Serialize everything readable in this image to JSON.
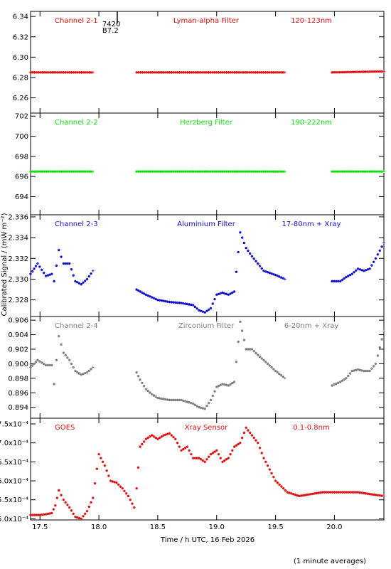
{
  "chart_data": {
    "type": "scatter",
    "x_axis": {
      "label": "Time / h UTC, 16 Feb 2026",
      "range": [
        17.42,
        20.42
      ],
      "ticks": [
        "17.5",
        "18.0",
        "18.5",
        "19.0",
        "19.5",
        "20.0"
      ],
      "tick_values": [
        17.5,
        18.0,
        18.5,
        19.0,
        19.5,
        20.0
      ]
    },
    "y_axis_label": "Calibrated Signal / (mW m⁻²)",
    "footnote": "(1 minute averages)",
    "annotation": {
      "lines": [
        "7420",
        "B7.2"
      ],
      "x": 18.15
    },
    "colors": {
      "red": "#dd1111",
      "green": "#11dd11",
      "blue": "#1111cc",
      "gray": "#808080"
    },
    "panels": [
      {
        "name": "Channel 2-1",
        "filter": "Lyman-alpha Filter",
        "band": "120-123nm",
        "color": "red",
        "ylim": [
          6.245,
          6.345
        ],
        "yticks": [
          "6.26",
          "6.28",
          "6.30",
          "6.32",
          "6.34"
        ],
        "ytick_values": [
          6.26,
          6.28,
          6.3,
          6.32,
          6.34
        ],
        "segments": [
          {
            "x": [
              17.42,
              17.95
            ],
            "y": [
              6.285,
              6.285
            ]
          },
          {
            "x": [
              18.32,
              19.58
            ],
            "y": [
              6.285,
              6.285
            ]
          },
          {
            "x": [
              19.98,
              20.42
            ],
            "y": [
              6.285,
              6.286
            ]
          }
        ]
      },
      {
        "name": "Channel 2-2",
        "filter": "Herzberg Filter",
        "band": "190-222nm",
        "color": "green",
        "ylim": [
          692.2,
          702.3
        ],
        "yticks": [
          "694",
          "696",
          "698",
          "700",
          "702"
        ],
        "ytick_values": [
          694,
          696,
          698,
          700,
          702
        ],
        "segments": [
          {
            "x": [
              17.42,
              17.95
            ],
            "y": [
              696.5,
              696.5
            ]
          },
          {
            "x": [
              18.32,
              19.58
            ],
            "y": [
              696.5,
              696.5
            ]
          },
          {
            "x": [
              19.98,
              20.42
            ],
            "y": [
              696.5,
              696.5
            ]
          }
        ]
      },
      {
        "name": "Channel 2-3",
        "filter": "Aluminium Filter",
        "band": "17-80nm + Xray",
        "color": "blue",
        "ylim": [
          2.3264,
          2.3362
        ],
        "yticks": [
          "2.328",
          "2.330",
          "2.332",
          "2.334",
          "2.336"
        ],
        "ytick_values": [
          2.328,
          2.33,
          2.332,
          2.334,
          2.336
        ],
        "segments": [
          {
            "x": [
              17.42,
              17.48,
              17.55,
              17.6,
              17.62,
              17.66,
              17.7,
              17.75,
              17.8,
              17.85,
              17.9,
              17.95
            ],
            "y": [
              2.3305,
              2.3315,
              2.3303,
              2.3305,
              2.3298,
              2.3328,
              2.3315,
              2.3315,
              2.3298,
              2.3295,
              2.33,
              2.3308
            ]
          },
          {
            "x": [
              18.32,
              18.4,
              18.5,
              18.6,
              18.7,
              18.8,
              18.85,
              18.9,
              18.95,
              19.0,
              19.05,
              19.1,
              19.15,
              19.2,
              19.25,
              19.3,
              19.35,
              19.4,
              19.5,
              19.58
            ],
            "y": [
              2.329,
              2.3285,
              2.328,
              2.3278,
              2.3277,
              2.3275,
              2.327,
              2.3268,
              2.3272,
              2.3285,
              2.3287,
              2.3285,
              2.3288,
              2.3345,
              2.333,
              2.3322,
              2.3315,
              2.3308,
              2.3304,
              2.33
            ]
          },
          {
            "x": [
              19.98,
              20.05,
              20.1,
              20.15,
              20.2,
              20.25,
              20.3,
              20.35,
              20.42
            ],
            "y": [
              2.3298,
              2.3298,
              2.3302,
              2.3305,
              2.331,
              2.3308,
              2.331,
              2.332,
              2.3335
            ]
          }
        ]
      },
      {
        "name": "Channel 2-4",
        "filter": "Zirconium Filter",
        "band": "6-20nm + Xray",
        "color": "gray",
        "ylim": [
          0.8925,
          0.9065
        ],
        "yticks": [
          "0.894",
          "0.896",
          "0.898",
          "0.900",
          "0.902",
          "0.904",
          "0.906"
        ],
        "ytick_values": [
          0.894,
          0.896,
          0.898,
          0.9,
          0.902,
          0.904,
          0.906
        ],
        "segments": [
          {
            "x": [
              17.42,
              17.48,
              17.55,
              17.6,
              17.62,
              17.66,
              17.7,
              17.75,
              17.8,
              17.85,
              17.9,
              17.95
            ],
            "y": [
              0.8995,
              0.9005,
              0.8998,
              0.8998,
              0.8972,
              0.9038,
              0.9015,
              0.9005,
              0.899,
              0.8985,
              0.8988,
              0.8995
            ]
          },
          {
            "x": [
              18.32,
              18.35,
              18.4,
              18.45,
              18.5,
              18.6,
              18.7,
              18.8,
              18.85,
              18.9,
              18.95,
              19.0,
              19.05,
              19.1,
              19.15,
              19.2,
              19.25,
              19.3,
              19.35,
              19.4,
              19.5,
              19.58
            ],
            "y": [
              0.8988,
              0.8978,
              0.8965,
              0.8958,
              0.8953,
              0.895,
              0.895,
              0.8945,
              0.894,
              0.8938,
              0.895,
              0.8968,
              0.8972,
              0.897,
              0.8975,
              0.9058,
              0.902,
              0.902,
              0.9012,
              0.9005,
              0.899,
              0.898
            ]
          },
          {
            "x": [
              19.98,
              20.05,
              20.1,
              20.15,
              20.2,
              20.25,
              20.3,
              20.35,
              20.42
            ],
            "y": [
              0.897,
              0.8975,
              0.898,
              0.899,
              0.8992,
              0.899,
              0.899,
              0.9,
              0.9045
            ]
          }
        ]
      },
      {
        "name": "GOES",
        "filter": "Xray Sensor",
        "band": "0.1-0.8nm",
        "color": "red",
        "ylim": [
          0.000497,
          0.000765
        ],
        "yticks": [
          "5.0x10⁻⁴",
          "5.5x10⁻⁴",
          "6.0x10⁻⁴",
          "6.5x10⁻⁴",
          "7.0x10⁻⁴",
          "7.5x10⁻⁴"
        ],
        "ytick_values": [
          0.0005,
          0.00055,
          0.0006,
          0.00065,
          0.0007,
          0.00075
        ],
        "segments": [
          {
            "x": [
              17.42,
              17.5,
              17.55,
              17.6,
              17.63,
              17.66,
              17.7,
              17.75,
              17.8,
              17.85,
              17.9,
              17.95,
              18.0,
              18.05,
              18.1,
              18.15,
              18.2,
              18.25,
              18.3,
              18.32,
              18.35,
              18.4,
              18.45,
              18.5,
              18.55,
              18.6,
              18.65,
              18.7,
              18.75,
              18.8,
              18.85,
              18.9,
              18.95,
              19.0,
              19.05,
              19.1,
              19.15,
              19.2,
              19.25,
              19.3,
              19.35,
              19.4,
              19.45,
              19.5,
              19.6,
              19.7,
              19.8,
              19.9,
              20.0,
              20.1,
              20.2,
              20.3,
              20.42
            ],
            "y": [
              0.00051,
              0.00051,
              0.000512,
              0.000515,
              0.000535,
              0.000575,
              0.00055,
              0.00053,
              0.000505,
              0.0005,
              0.00052,
              0.000555,
              0.00067,
              0.00064,
              0.0006,
              0.000595,
              0.00058,
              0.00056,
              0.00053,
              0.00058,
              0.00069,
              0.00071,
              0.00072,
              0.00071,
              0.00072,
              0.000725,
              0.00071,
              0.00068,
              0.00069,
              0.00066,
              0.00066,
              0.00065,
              0.00067,
              0.00068,
              0.00065,
              0.00066,
              0.00069,
              0.0007,
              0.00074,
              0.00072,
              0.0007,
              0.00066,
              0.00063,
              0.0006,
              0.00057,
              0.00056,
              0.000565,
              0.00057,
              0.00057,
              0.00057,
              0.00057,
              0.000565,
              0.00056
            ]
          }
        ]
      }
    ]
  }
}
